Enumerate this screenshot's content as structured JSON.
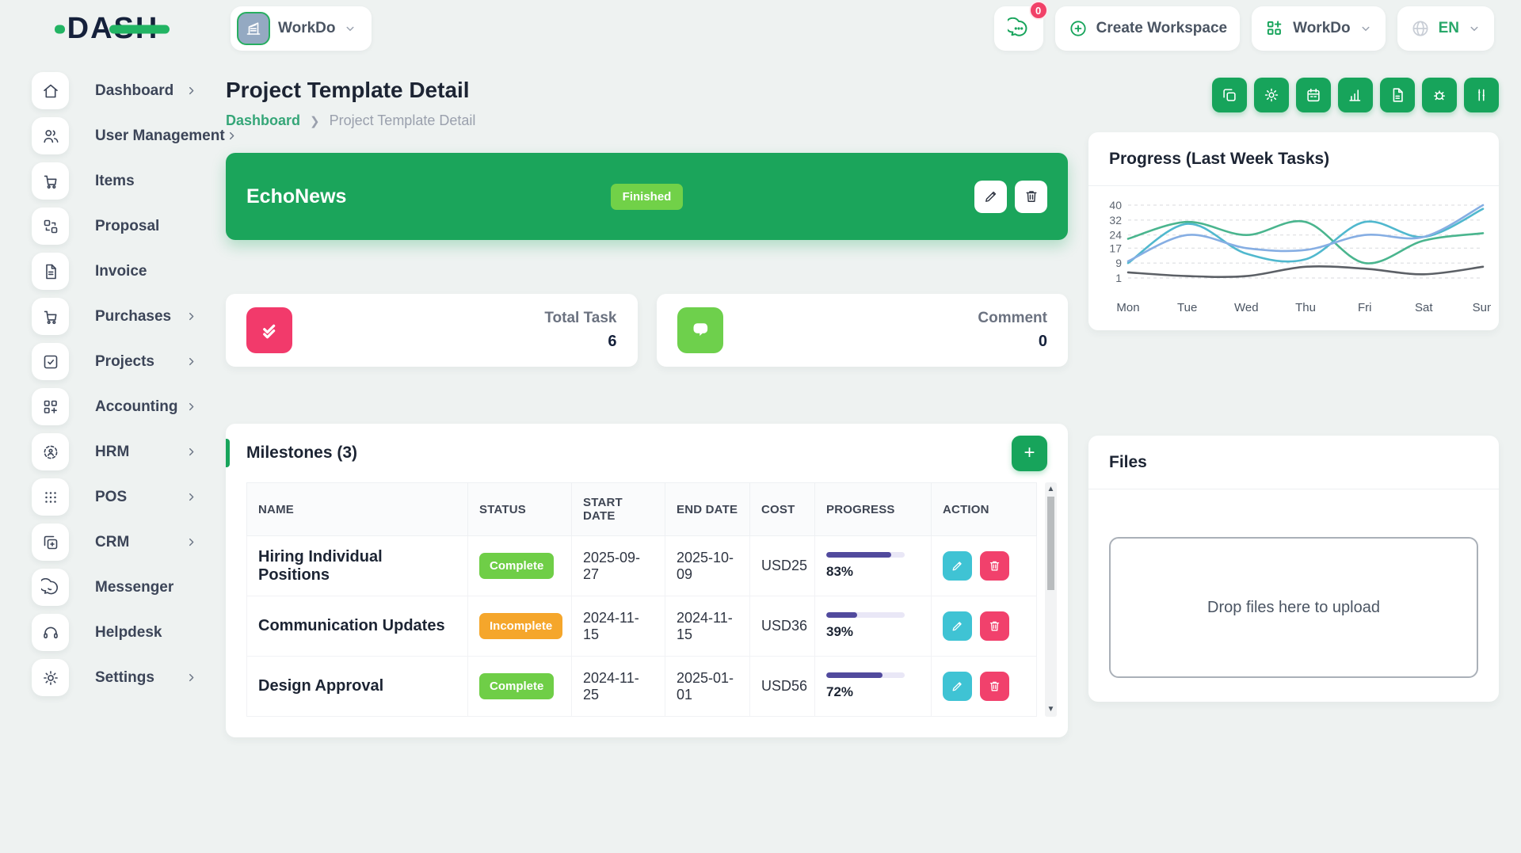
{
  "logo": {
    "text": "DASH"
  },
  "header": {
    "workspace_pill": {
      "label": "WorkDo"
    },
    "chat_badge": "0",
    "create_workspace_label": "Create Workspace",
    "workdo_label": "WorkDo",
    "language": "EN"
  },
  "page": {
    "title": "Project Template Detail",
    "breadcrumb": [
      "Dashboard",
      "Project Template Detail"
    ]
  },
  "toolbar": [
    {
      "name": "duplicate",
      "icon": "copy-icon"
    },
    {
      "name": "settings",
      "icon": "gear-icon"
    },
    {
      "name": "calendar",
      "icon": "calendar-icon"
    },
    {
      "name": "report",
      "icon": "chart-icon"
    },
    {
      "name": "notes",
      "icon": "file-icon"
    },
    {
      "name": "bug",
      "icon": "bug-icon"
    },
    {
      "name": "board",
      "icon": "board-icon"
    }
  ],
  "banner": {
    "name": "EchoNews",
    "status": "Finished"
  },
  "stats": [
    {
      "label": "Total Task",
      "value": "6",
      "icon": "double-check-icon",
      "color": "#f23a6b"
    },
    {
      "label": "Comment",
      "value": "0",
      "icon": "chat-bubbles-icon",
      "color": "#6ed04c"
    }
  ],
  "milestones": {
    "title": "Milestones (3)",
    "columns": [
      "NAME",
      "STATUS",
      "START DATE",
      "END DATE",
      "COST",
      "PROGRESS",
      "ACTION"
    ],
    "rows": [
      {
        "name": "Hiring Individual Positions",
        "status": "Complete",
        "status_class": "complete",
        "start": "2025-09-27",
        "end": "2025-10-09",
        "cost": "USD25",
        "progress": 83
      },
      {
        "name": "Communication Updates",
        "status": "Incomplete",
        "status_class": "incomplete",
        "start": "2024-11-15",
        "end": "2024-11-15",
        "cost": "USD36",
        "progress": 39
      },
      {
        "name": "Design Approval",
        "status": "Complete",
        "status_class": "complete",
        "start": "2024-11-25",
        "end": "2025-01-01",
        "cost": "USD56",
        "progress": 72
      }
    ]
  },
  "chart_data": {
    "type": "line",
    "title": "Progress (Last Week Tasks)",
    "x": [
      "Mon",
      "Tue",
      "Wed",
      "Thu",
      "Fri",
      "Sat",
      "Sun"
    ],
    "yticks": [
      40,
      32,
      24,
      17,
      9,
      1
    ],
    "ylim": [
      1,
      40
    ],
    "grid": "horizontal-dashed",
    "legend": "none",
    "series": [
      {
        "name": "green",
        "color": "#4ab58e",
        "values": [
          22,
          31,
          24,
          31,
          9,
          21,
          25
        ]
      },
      {
        "name": "cyan",
        "color": "#50b8ce",
        "values": [
          9,
          30,
          14,
          11,
          31,
          23,
          38
        ]
      },
      {
        "name": "blue",
        "color": "#86aee3",
        "values": [
          10,
          24,
          17,
          16,
          24,
          23,
          40
        ]
      },
      {
        "name": "gray",
        "color": "#5c6066",
        "values": [
          4,
          2,
          2,
          7,
          6,
          3,
          7
        ]
      }
    ]
  },
  "files_card": {
    "title": "Files",
    "dropzone_text": "Drop files here to upload"
  },
  "sidebar": {
    "items": [
      {
        "label": "Dashboard",
        "icon": "home-icon",
        "chevron": true
      },
      {
        "label": "User Management",
        "icon": "users-icon",
        "chevron": true
      },
      {
        "label": "Items",
        "icon": "cart-icon",
        "chevron": false
      },
      {
        "label": "Proposal",
        "icon": "exchange-icon",
        "chevron": false
      },
      {
        "label": "Invoice",
        "icon": "invoice-icon",
        "chevron": false
      },
      {
        "label": "Purchases",
        "icon": "cart-icon",
        "chevron": true
      },
      {
        "label": "Projects",
        "icon": "check-square-icon",
        "chevron": true
      },
      {
        "label": "Accounting",
        "icon": "grid-plus-icon",
        "chevron": true
      },
      {
        "label": "HRM",
        "icon": "hrm-icon",
        "chevron": true
      },
      {
        "label": "POS",
        "icon": "dots-grid-icon",
        "chevron": true
      },
      {
        "label": "CRM",
        "icon": "copy-plus-icon",
        "chevron": true
      },
      {
        "label": "Messenger",
        "icon": "message-icon",
        "chevron": false
      },
      {
        "label": "Helpdesk",
        "icon": "headset-icon",
        "chevron": false
      },
      {
        "label": "Settings",
        "icon": "gear-icon",
        "chevron": true
      }
    ]
  },
  "colors": {
    "brand_green": "#17a45b",
    "badge_complete": "#6fce47",
    "badge_incomplete": "#f5a62b",
    "edit_teal": "#3fc3d4",
    "delete_pink": "#f1416c",
    "stat_pink": "#f23a6b",
    "stat_green": "#6ed04c",
    "progress_purple": "#514a9d"
  }
}
